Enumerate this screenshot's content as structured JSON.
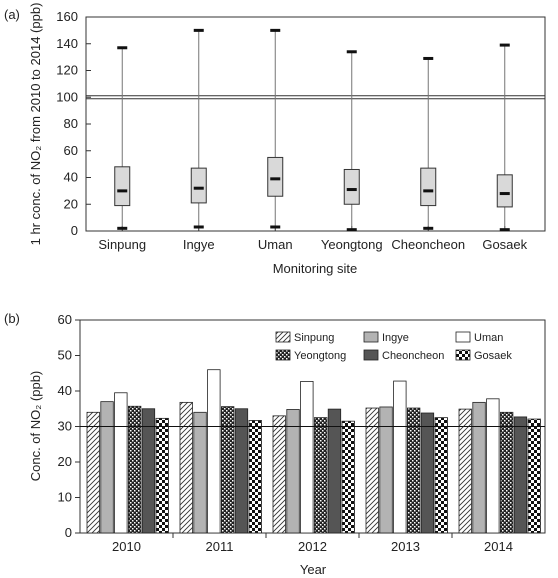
{
  "panel_a_label": "(a)",
  "panel_b_label": "(b)",
  "chart_data": [
    {
      "type": "box",
      "xlabel": "Monitoring site",
      "ylabel": "1 hr conc. of NO₂ from 2010 to 2014 (ppb)",
      "ylim": [
        0,
        160
      ],
      "yticks": [
        0,
        20,
        40,
        60,
        80,
        100,
        120,
        140,
        160
      ],
      "reference_line": 100,
      "categories": [
        "Sinpung",
        "Ingye",
        "Uman",
        "Yeongtong",
        "Cheoncheon",
        "Gosaek"
      ],
      "boxes": [
        {
          "min": 2,
          "q1": 19,
          "median": 30,
          "q3": 48,
          "max": 137
        },
        {
          "min": 3,
          "q1": 21,
          "median": 32,
          "q3": 47,
          "max": 150
        },
        {
          "min": 3,
          "q1": 26,
          "median": 39,
          "q3": 55,
          "max": 150
        },
        {
          "min": 1,
          "q1": 20,
          "median": 31,
          "q3": 46,
          "max": 134
        },
        {
          "min": 2,
          "q1": 19,
          "median": 30,
          "q3": 47,
          "max": 129
        },
        {
          "min": 1,
          "q1": 18,
          "median": 28,
          "q3": 42,
          "max": 139
        }
      ]
    },
    {
      "type": "bar",
      "xlabel": "Year",
      "ylabel": "Conc. of NO₂ (ppb)",
      "ylim": [
        0,
        60
      ],
      "yticks": [
        0,
        10,
        20,
        30,
        40,
        50,
        60
      ],
      "reference_line": 30,
      "legend_position": "top-right",
      "categories": [
        "2010",
        "2011",
        "2012",
        "2013",
        "2014"
      ],
      "series": [
        {
          "name": "Sinpung",
          "pattern": "hatch",
          "values": [
            34.0,
            36.8,
            33.0,
            35.2,
            34.9
          ]
        },
        {
          "name": "Ingye",
          "pattern": "lightgray",
          "values": [
            37.0,
            34.0,
            34.8,
            35.5,
            36.8
          ]
        },
        {
          "name": "Uman",
          "pattern": "white",
          "values": [
            39.5,
            46.0,
            42.7,
            42.8,
            37.8
          ]
        },
        {
          "name": "Yeongtong",
          "pattern": "dots",
          "values": [
            35.7,
            35.6,
            32.5,
            35.2,
            34.0
          ]
        },
        {
          "name": "Cheoncheon",
          "pattern": "darkgray",
          "values": [
            35.0,
            35.0,
            34.9,
            33.8,
            32.7
          ]
        },
        {
          "name": "Gosaek",
          "pattern": "checker",
          "values": [
            32.3,
            31.7,
            31.5,
            32.5,
            32.1
          ]
        }
      ]
    }
  ]
}
